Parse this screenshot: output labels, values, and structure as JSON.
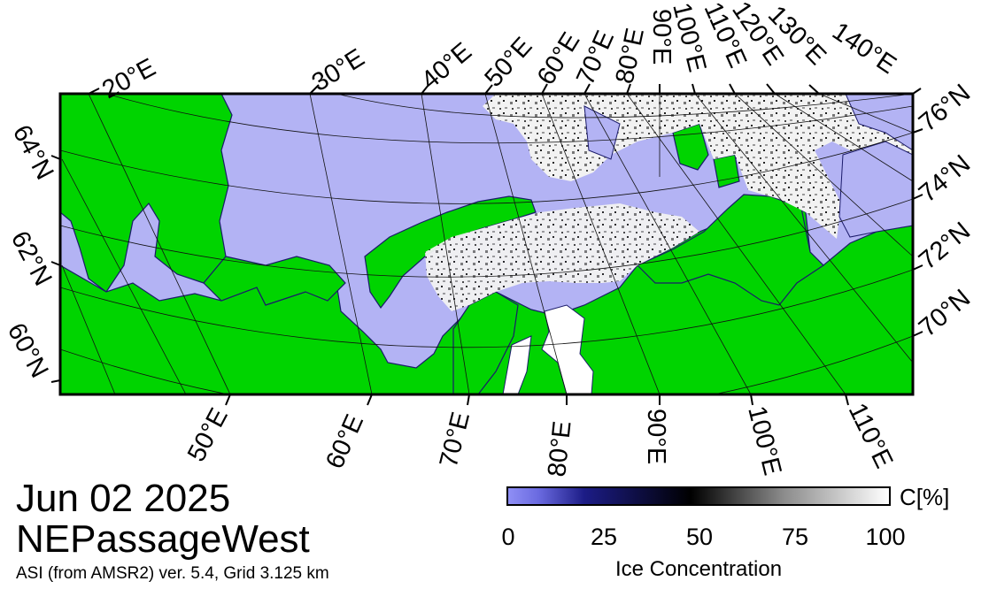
{
  "footer": {
    "date": "Jun 02 2025",
    "region": "NEPassageWest",
    "source": "ASI (from AMSR2) ver. 5.4,  Grid 3.125 km"
  },
  "legend": {
    "unit": "C[%]",
    "ticks": [
      "0",
      "25",
      "50",
      "75",
      "100"
    ],
    "title": "Ice Concentration",
    "colors": {
      "open_water": "#b3b3f4",
      "land": "#00d400",
      "low_ice": "#1c1c86",
      "mid_ice": "#000000",
      "high_ice": "#ffffff"
    }
  },
  "map": {
    "top_lon_labels": [
      "20°E",
      "30°E",
      "40°E",
      "50°E",
      "60°E",
      "70°E",
      "80°E",
      "90°E",
      "100°E",
      "110°E",
      "120°E",
      "130°E",
      "140°E"
    ],
    "bottom_lon_labels": [
      "50°E",
      "60°E",
      "70°E",
      "80°E",
      "90°E",
      "100°E",
      "110°E"
    ],
    "left_lat_labels": [
      "64°N",
      "62°N",
      "60°N"
    ],
    "right_lat_labels": [
      "76°N",
      "74°N",
      "72°N",
      "70°N"
    ]
  }
}
